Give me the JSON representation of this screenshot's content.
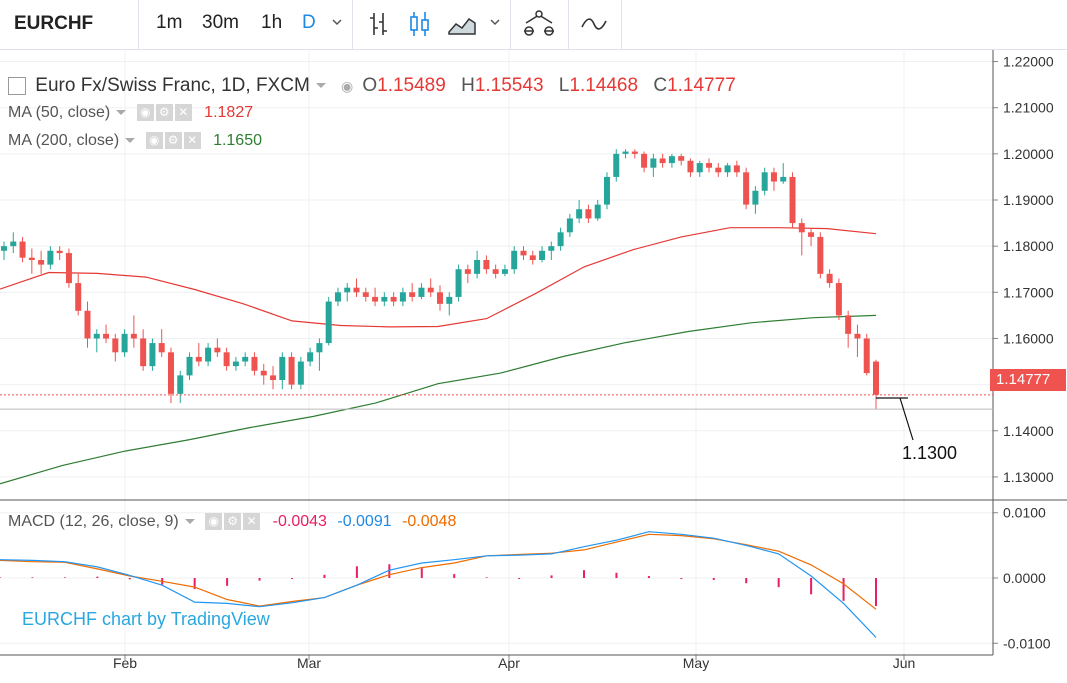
{
  "toolbar": {
    "symbol": "EURCHF",
    "intervals": [
      "1m",
      "30m",
      "1h",
      "D"
    ],
    "active_interval": "D"
  },
  "legend": {
    "title": "Euro Fx/Swiss Franc, 1D, FXCM",
    "open_label": "O",
    "open": "1.15489",
    "high_label": "H",
    "high": "1.15543",
    "low_label": "L",
    "low": "1.14468",
    "close_label": "C",
    "close": "1.14777",
    "ma50_label": "MA (50, close)",
    "ma50_value": "1.1827",
    "ma200_label": "MA (200, close)",
    "ma200_value": "1.1650",
    "macd_label": "MACD (12, 26, close, 9)",
    "macd_hist": "-0.0043",
    "macd_line": "-0.0091",
    "macd_signal": "-0.0048"
  },
  "current_price": "1.14777",
  "annotation": "1.1300",
  "watermark": "EURCHF chart by TradingView",
  "colors": {
    "up": "#26a69a",
    "down": "#ef5350",
    "ma50": "#e53935",
    "ma200": "#2e7d32",
    "macd": "#2196f3",
    "signal": "#ef6c00",
    "hist": "#e91e63"
  },
  "chart_data": [
    {
      "type": "candlestick",
      "title": "Euro Fx/Swiss Franc, 1D, FXCM",
      "x_tick_labels": [
        "Feb",
        "Mar",
        "Apr",
        "May",
        "Jun"
      ],
      "ylim": [
        1.125,
        1.2225
      ],
      "y_ticks": [
        "1.22000",
        "1.21000",
        "1.20000",
        "1.19000",
        "1.18000",
        "1.17000",
        "1.16000",
        "1.15000",
        "1.14000",
        "1.13000"
      ],
      "candles": [
        [
          1.179,
          1.181,
          1.177,
          1.18
        ],
        [
          1.18,
          1.183,
          1.1785,
          1.181
        ],
        [
          1.181,
          1.182,
          1.1765,
          1.1775
        ],
        [
          1.1775,
          1.1795,
          1.174,
          1.177
        ],
        [
          1.177,
          1.179,
          1.174,
          1.176
        ],
        [
          1.176,
          1.18,
          1.175,
          1.179
        ],
        [
          1.179,
          1.18,
          1.177,
          1.1785
        ],
        [
          1.1785,
          1.1795,
          1.171,
          1.172
        ],
        [
          1.172,
          1.174,
          1.165,
          1.166
        ],
        [
          1.166,
          1.168,
          1.158,
          1.16
        ],
        [
          1.16,
          1.162,
          1.157,
          1.161
        ],
        [
          1.161,
          1.163,
          1.159,
          1.16
        ],
        [
          1.16,
          1.161,
          1.155,
          1.157
        ],
        [
          1.157,
          1.162,
          1.156,
          1.161
        ],
        [
          1.161,
          1.165,
          1.158,
          1.16
        ],
        [
          1.16,
          1.162,
          1.153,
          1.154
        ],
        [
          1.154,
          1.16,
          1.153,
          1.159
        ],
        [
          1.159,
          1.162,
          1.156,
          1.157
        ],
        [
          1.157,
          1.158,
          1.146,
          1.148
        ],
        [
          1.148,
          1.153,
          1.146,
          1.152
        ],
        [
          1.152,
          1.157,
          1.151,
          1.156
        ],
        [
          1.156,
          1.159,
          1.154,
          1.155
        ],
        [
          1.155,
          1.159,
          1.154,
          1.158
        ],
        [
          1.158,
          1.16,
          1.156,
          1.157
        ],
        [
          1.157,
          1.158,
          1.153,
          1.154
        ],
        [
          1.154,
          1.156,
          1.153,
          1.155
        ],
        [
          1.155,
          1.157,
          1.154,
          1.156
        ],
        [
          1.156,
          1.157,
          1.152,
          1.153
        ],
        [
          1.153,
          1.1545,
          1.15,
          1.152
        ],
        [
          1.152,
          1.154,
          1.149,
          1.151
        ],
        [
          1.151,
          1.157,
          1.149,
          1.156
        ],
        [
          1.156,
          1.157,
          1.149,
          1.15
        ],
        [
          1.15,
          1.156,
          1.149,
          1.155
        ],
        [
          1.155,
          1.158,
          1.154,
          1.157
        ],
        [
          1.157,
          1.16,
          1.153,
          1.159
        ],
        [
          1.159,
          1.169,
          1.1585,
          1.168
        ],
        [
          1.168,
          1.171,
          1.167,
          1.17
        ],
        [
          1.17,
          1.172,
          1.168,
          1.171
        ],
        [
          1.171,
          1.173,
          1.169,
          1.17
        ],
        [
          1.17,
          1.171,
          1.168,
          1.169
        ],
        [
          1.169,
          1.171,
          1.167,
          1.168
        ],
        [
          1.168,
          1.17,
          1.167,
          1.169
        ],
        [
          1.169,
          1.17,
          1.167,
          1.168
        ],
        [
          1.168,
          1.171,
          1.167,
          1.17
        ],
        [
          1.17,
          1.172,
          1.168,
          1.169
        ],
        [
          1.169,
          1.172,
          1.1685,
          1.171
        ],
        [
          1.171,
          1.173,
          1.169,
          1.17
        ],
        [
          1.17,
          1.1715,
          1.166,
          1.1675
        ],
        [
          1.1675,
          1.17,
          1.165,
          1.169
        ],
        [
          1.169,
          1.176,
          1.168,
          1.175
        ],
        [
          1.175,
          1.176,
          1.172,
          1.174
        ],
        [
          1.174,
          1.179,
          1.173,
          1.177
        ],
        [
          1.177,
          1.178,
          1.174,
          1.175
        ],
        [
          1.175,
          1.176,
          1.173,
          1.174
        ],
        [
          1.174,
          1.176,
          1.1735,
          1.175
        ],
        [
          1.175,
          1.18,
          1.174,
          1.179
        ],
        [
          1.179,
          1.18,
          1.177,
          1.178
        ],
        [
          1.178,
          1.179,
          1.176,
          1.177
        ],
        [
          1.177,
          1.18,
          1.1765,
          1.179
        ],
        [
          1.179,
          1.181,
          1.177,
          1.18
        ],
        [
          1.18,
          1.184,
          1.179,
          1.183
        ],
        [
          1.183,
          1.187,
          1.182,
          1.186
        ],
        [
          1.186,
          1.19,
          1.185,
          1.188
        ],
        [
          1.188,
          1.189,
          1.185,
          1.186
        ],
        [
          1.186,
          1.19,
          1.1855,
          1.189
        ],
        [
          1.189,
          1.196,
          1.188,
          1.195
        ],
        [
          1.195,
          1.201,
          1.194,
          1.2
        ],
        [
          1.2,
          1.201,
          1.199,
          1.2005
        ],
        [
          1.2005,
          1.201,
          1.199,
          1.2
        ],
        [
          1.2,
          1.2005,
          1.196,
          1.197
        ],
        [
          1.197,
          1.2,
          1.195,
          1.199
        ],
        [
          1.199,
          1.2,
          1.197,
          1.198
        ],
        [
          1.198,
          1.2,
          1.197,
          1.1995
        ],
        [
          1.1995,
          1.2,
          1.1975,
          1.1985
        ],
        [
          1.1985,
          1.199,
          1.195,
          1.196
        ],
        [
          1.196,
          1.1985,
          1.195,
          1.198
        ],
        [
          1.198,
          1.199,
          1.196,
          1.197
        ],
        [
          1.197,
          1.198,
          1.195,
          1.196
        ],
        [
          1.196,
          1.198,
          1.195,
          1.1975
        ],
        [
          1.1975,
          1.1985,
          1.195,
          1.196
        ],
        [
          1.196,
          1.197,
          1.188,
          1.189
        ],
        [
          1.189,
          1.193,
          1.187,
          1.192
        ],
        [
          1.192,
          1.197,
          1.191,
          1.196
        ],
        [
          1.196,
          1.197,
          1.192,
          1.194
        ],
        [
          1.194,
          1.198,
          1.1935,
          1.195
        ],
        [
          1.195,
          1.196,
          1.184,
          1.185
        ],
        [
          1.185,
          1.186,
          1.178,
          1.183
        ],
        [
          1.183,
          1.184,
          1.18,
          1.182
        ],
        [
          1.182,
          1.183,
          1.173,
          1.174
        ],
        [
          1.174,
          1.175,
          1.171,
          1.172
        ],
        [
          1.172,
          1.173,
          1.164,
          1.165
        ],
        [
          1.165,
          1.166,
          1.158,
          1.161
        ],
        [
          1.161,
          1.163,
          1.156,
          1.16
        ],
        [
          1.16,
          1.161,
          1.152,
          1.1525
        ],
        [
          1.155,
          1.1554,
          1.1447,
          1.1478
        ]
      ],
      "ma50": [
        1.1707,
        1.1743,
        1.1741,
        1.1733,
        1.1706,
        1.1675,
        1.1638,
        1.1628,
        1.1625,
        1.1626,
        1.1643,
        1.1697,
        1.1755,
        1.1792,
        1.182,
        1.184,
        1.184,
        1.1838,
        1.1827
      ],
      "ma200": [
        1.1285,
        1.1325,
        1.1356,
        1.138,
        1.1407,
        1.1431,
        1.146,
        1.1502,
        1.1525,
        1.1561,
        1.1591,
        1.1615,
        1.1634,
        1.1645,
        1.165
      ],
      "current_price": 1.14777
    },
    {
      "type": "macd",
      "title": "MACD (12, 26, close, 9)",
      "ylim": [
        -0.0118,
        0.0118
      ],
      "y_ticks": [
        "0.0100",
        "0.0000",
        "-0.0100"
      ],
      "macd": [
        0.0028,
        0.0027,
        0.0025,
        0.0017,
        0.0004,
        -0.0011,
        -0.0037,
        -0.0039,
        -0.0044,
        -0.0038,
        -0.003,
        -0.0011,
        0.0012,
        0.0023,
        0.0028,
        0.0034,
        0.0035,
        0.0037,
        0.0048,
        0.0058,
        0.0071,
        0.0067,
        0.0061,
        0.005,
        0.0037,
        0.0003,
        -0.0039,
        -0.0091
      ],
      "signal": [
        0.0027,
        0.0025,
        0.0024,
        0.0014,
        0.0003,
        -0.0005,
        -0.0014,
        -0.0033,
        -0.0043,
        -0.0036,
        -0.003,
        -0.0011,
        0.0005,
        0.0016,
        0.0023,
        0.0034,
        0.0036,
        0.0038,
        0.0043,
        0.0055,
        0.0067,
        0.0065,
        0.006,
        0.0051,
        0.0041,
        0.002,
        -0.0009,
        -0.0048
      ],
      "histogram": [
        0.0001,
        0.0001,
        0.0001,
        0.0002,
        -0.0002,
        -0.001,
        -0.0017,
        -0.0012,
        -0.0004,
        0.0,
        0.0005,
        0.0018,
        0.0021,
        0.0015,
        0.0006,
        0.0001,
        0.0,
        0.0004,
        0.0012,
        0.0008,
        0.0003,
        0.0,
        -0.0003,
        -0.0008,
        -0.0014,
        -0.0025,
        -0.0035,
        -0.0043
      ]
    }
  ]
}
